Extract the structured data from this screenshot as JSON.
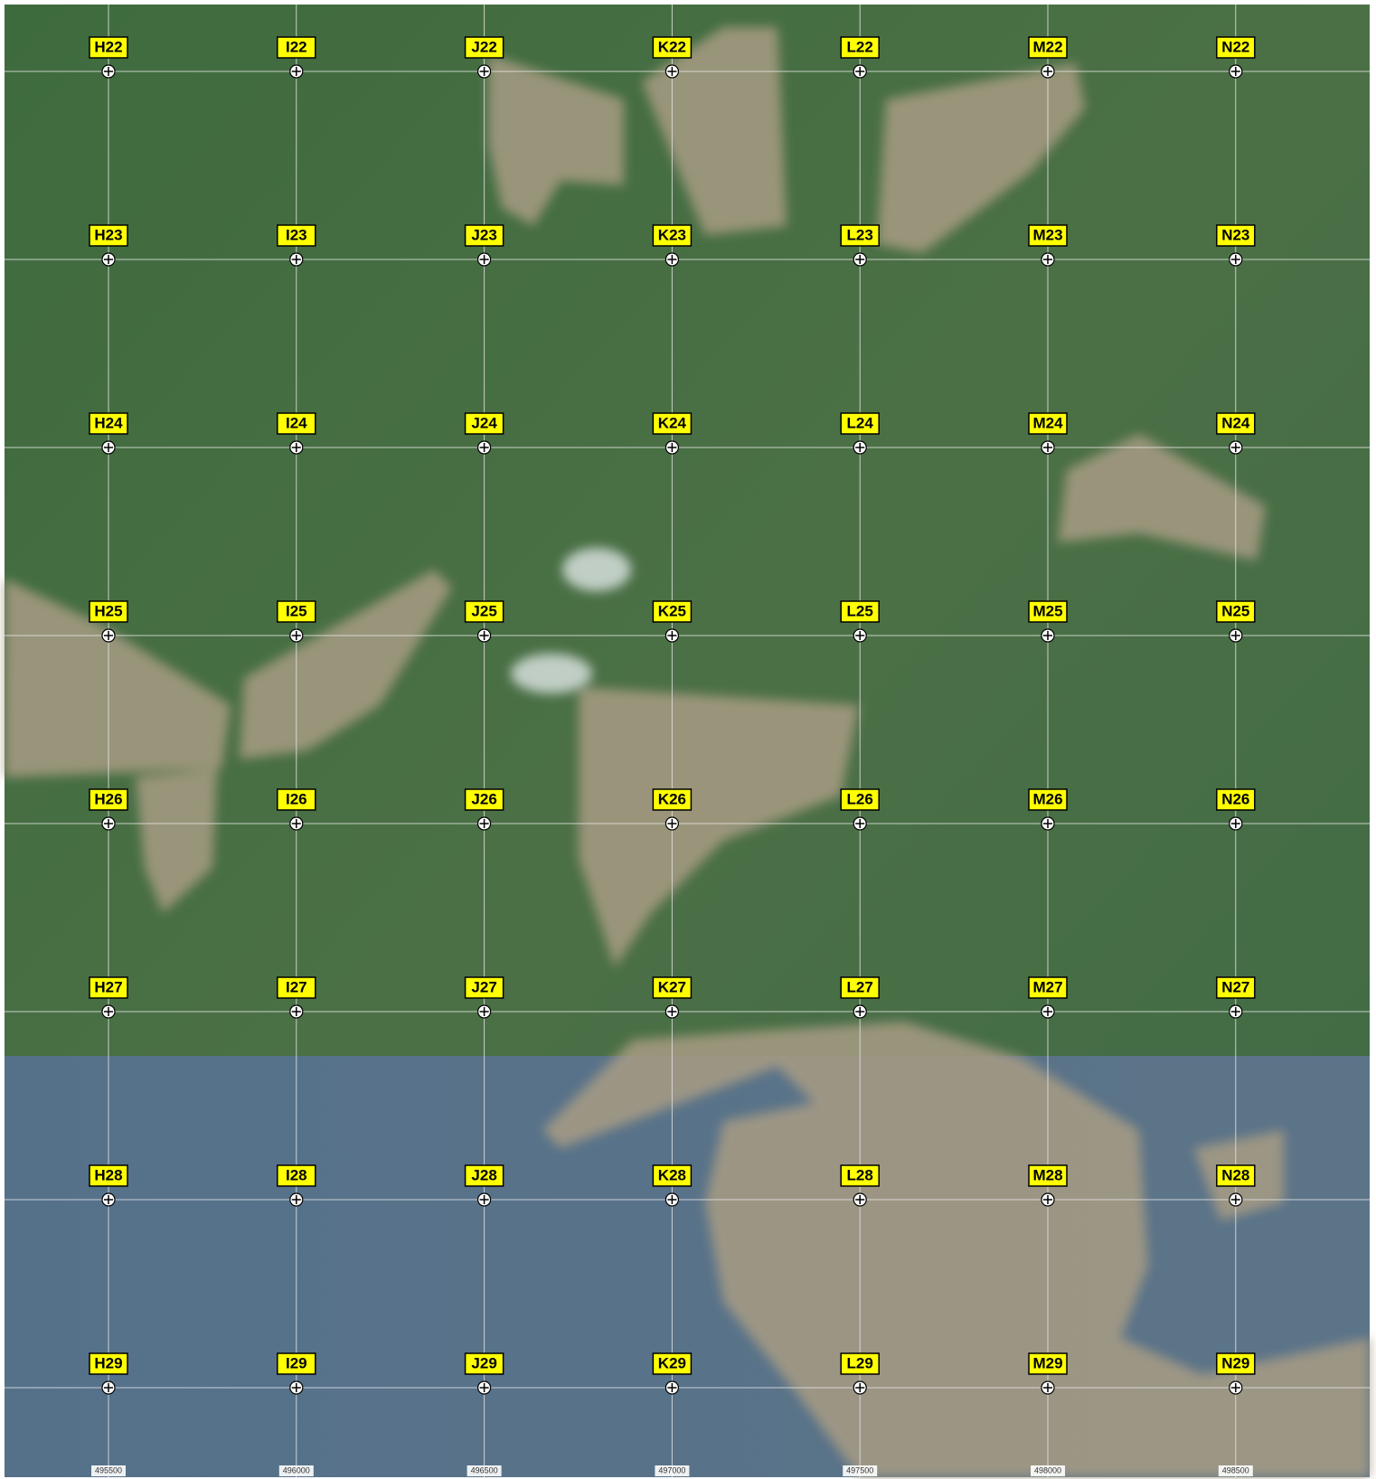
{
  "grid": [
    [
      "H22",
      "I22",
      "J22",
      "K22",
      "L22",
      "M22",
      "N22"
    ],
    [
      "H23",
      "I23",
      "J23",
      "K23",
      "L23",
      "M23",
      "N23"
    ],
    [
      "H24",
      "I24",
      "J24",
      "K24",
      "L24",
      "M24",
      "N24"
    ],
    [
      "H25",
      "I25",
      "J25",
      "K25",
      "L25",
      "M25",
      "N25"
    ],
    [
      "H26",
      "I26",
      "J26",
      "K26",
      "L26",
      "M26",
      "N26"
    ],
    [
      "H27",
      "I27",
      "J27",
      "K27",
      "L27",
      "M27",
      "N27"
    ],
    [
      "H28",
      "I28",
      "J28",
      "K28",
      "L28",
      "M28",
      "N28"
    ],
    [
      "H29",
      "I29",
      "J29",
      "K29",
      "L29",
      "M29",
      "N29"
    ]
  ],
  "easting": [
    "495500",
    "496000",
    "496500",
    "497000",
    "497500",
    "498000",
    "498500"
  ]
}
